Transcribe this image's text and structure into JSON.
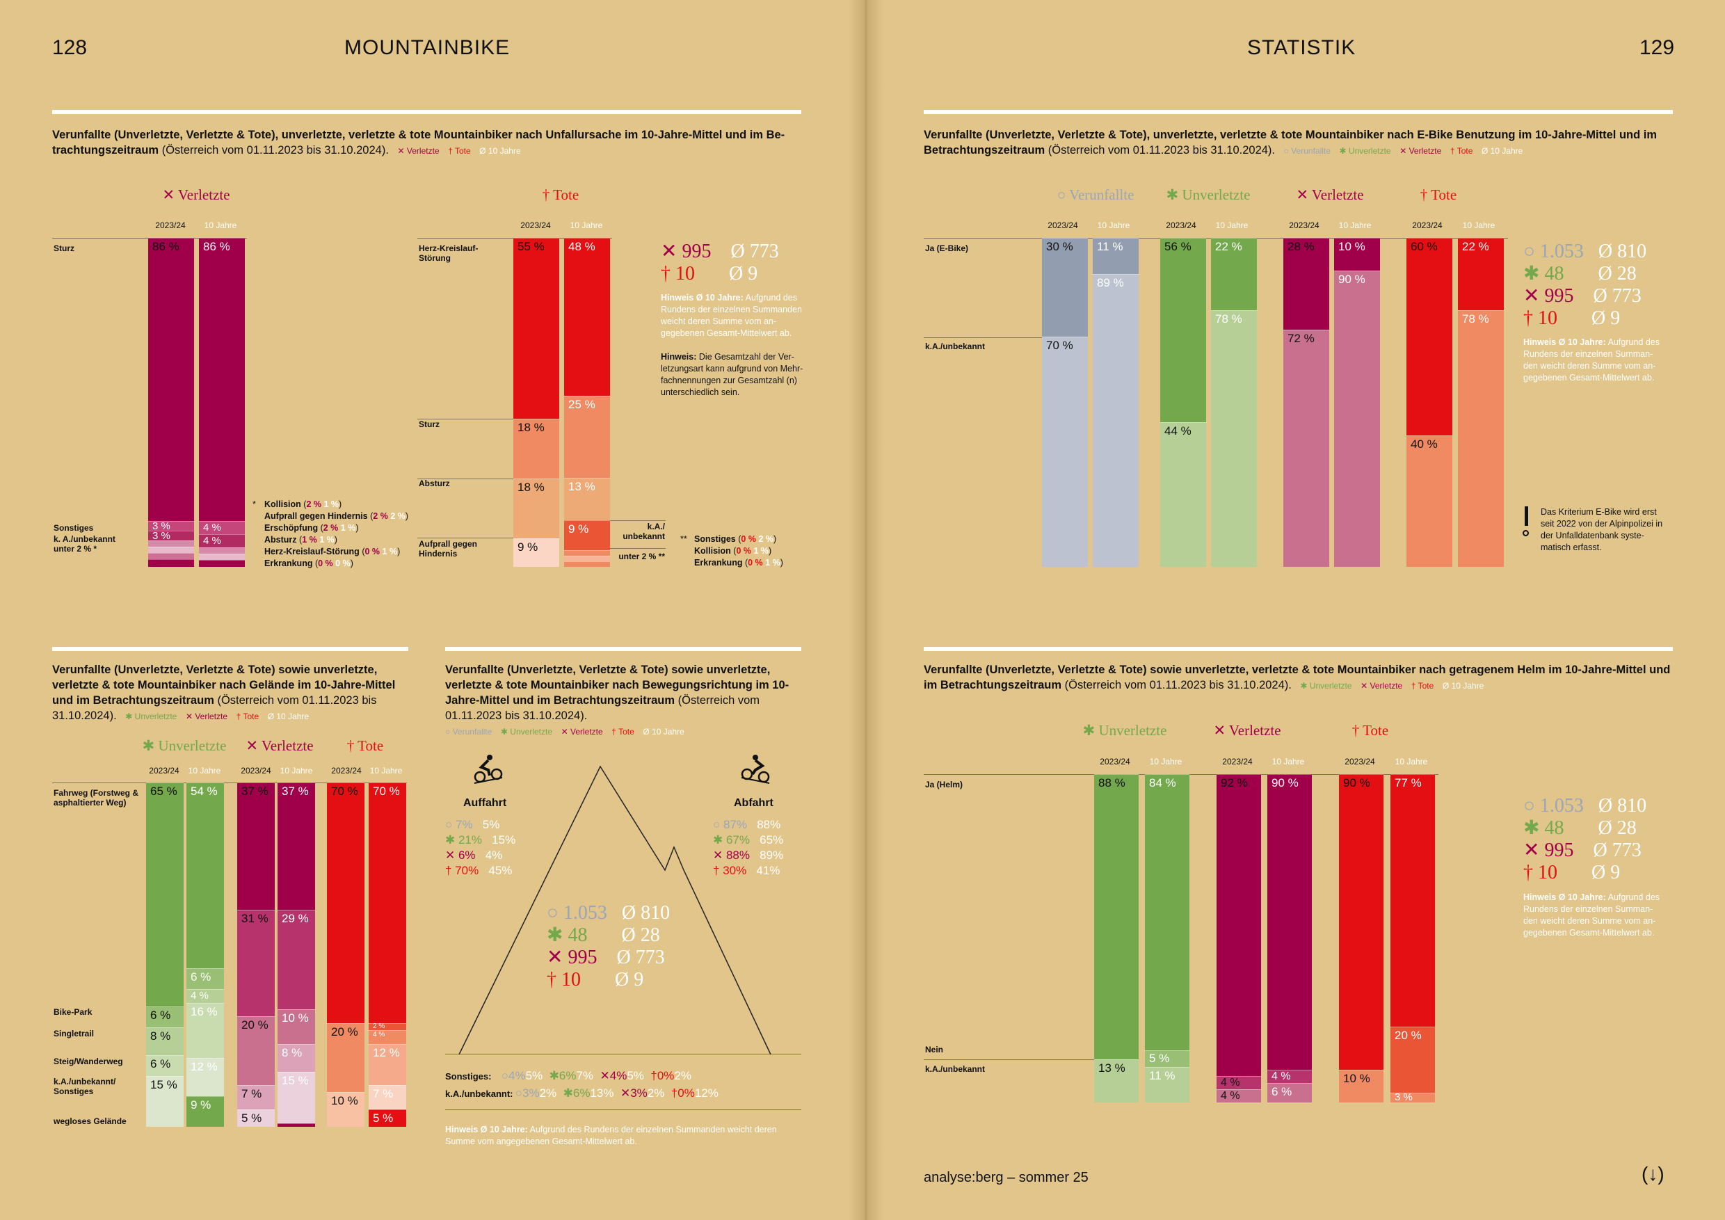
{
  "left_page": {
    "number": "128",
    "title": "MOUNTAINBIKE"
  },
  "right_page": {
    "number": "129",
    "title": "STATISTIK"
  },
  "labels": {
    "y1": "2023/24",
    "y2": "10 Jahre",
    "verunfallte": "Verunfallte",
    "unverletzte": "Unverletzte",
    "verletzte": "Verletzte",
    "tote": "Tote",
    "avg": "Ø 10 Jahre"
  },
  "icons": {
    "verunfallte": "circle-icon",
    "unverletzte": "asterisk-icon",
    "verletzte": "cross-icon",
    "tote": "dagger-icon",
    "avg": "diameter-icon"
  },
  "colors": {
    "verletzte": "#a0004a",
    "tote": "#e30f12",
    "unverletzte": "#74a84d",
    "verunfallte": "#9aa5b8"
  },
  "chart1": {
    "title_bold": "Verunfallte (Unverletzte, Verletzte & Tote), unverletzte, verletzte & tote Mountainbiker nach Unfallursache im 10-Jahre-Mittel und im Be-trachtungszeitraum",
    "title_normal": "(Österreich vom 01.11.2023 bis 31.10.2024).",
    "verletzte_categories": [
      "Sturz",
      "Sonstiges",
      "k. A./unbekannt",
      "unter 2 % *"
    ],
    "tote_categories": [
      "Herz-Kreislauf-Störung",
      "Sturz",
      "Absturz",
      "Aufprall gegen Hindernis"
    ],
    "tote_side_labels": [
      "k.A./ unbekannt",
      "unter 2 % **"
    ],
    "footnote1_marker": "*",
    "footnote1": [
      {
        "label": "Kollision",
        "v": "2 %",
        "a": "1 %"
      },
      {
        "label": "Aufprall gegen Hindernis",
        "v": "2 %",
        "a": "2 %"
      },
      {
        "label": "Erschöpfung",
        "v": "2 %",
        "a": "1 %"
      },
      {
        "label": "Absturz",
        "v": "1 %",
        "a": "1 %"
      },
      {
        "label": "Herz-Kreislauf-Störung",
        "v": "0 %",
        "a": "1 %"
      },
      {
        "label": "Erkrankung",
        "v": "0 %",
        "a": "0 %"
      }
    ],
    "footnote2_marker": "**",
    "footnote2": [
      {
        "label": "Sonstiges",
        "v": "0 %",
        "a": "2 %"
      },
      {
        "label": "Kollision",
        "v": "0 %",
        "a": "1 %"
      },
      {
        "label": "Erkrankung",
        "v": "0 %",
        "a": "1 %"
      }
    ],
    "stats": {
      "verletzte": "995",
      "verletzte_avg": "773",
      "tote": "10",
      "tote_avg": "9"
    },
    "hint1_bold": "Hinweis Ø 10 Jahre:",
    "hint1": "Aufgrund des Rundens der einzelnen Summanden weicht deren Summe vom an-gegebenen Gesamt-Mittelwert ab.",
    "hint2_bold": "Hinweis:",
    "hint2": "Die Gesamtzahl der Ver-letzungsart kann aufgrund von Mehr-fachnennungen zur Gesamtzahl (n) unterschiedlich sein."
  },
  "chart2": {
    "title_bold": "Verunfallte (Unverletzte, Verletzte & Tote), unverletzte, verletzte & tote Mountainbiker nach E-Bike Benutzung im 10-Jahre-Mittel und im Betrachtungszeitraum",
    "title_normal": "(Österreich vom 01.11.2023 bis 31.10.2024).",
    "categories": [
      "Ja (E-Bike)",
      "k.A./unbekannt"
    ],
    "stats": {
      "verunfallte": "1.053",
      "verunfallte_avg": "810",
      "unverletzte": "48",
      "unverletzte_avg": "28",
      "verletzte": "995",
      "verletzte_avg": "773",
      "tote": "10",
      "tote_avg": "9"
    },
    "hint_bold": "Hinweis Ø 10 Jahre:",
    "hint": "Aufgrund des Rundens der einzelnen Summan-den weicht deren Summe vom an-gegebenen Gesamt-Mittelwert ab.",
    "ebike_note": "Das Kriterium E-Bike wird erst seit 2022 von der Alpinpolizei in der Unfalldatenbank syste-matisch erfasst."
  },
  "chart3": {
    "title_bold": "Verunfallte (Unverletzte, Verletzte & Tote) sowie unverletzte, verletzte & tote Mountainbiker nach Gelände im 10-Jahre-Mittel und im Betrachtungszeitraum",
    "title_normal": "(Österreich vom 01.11.2023 bis 31.10.2024).",
    "categories": [
      "Fahrweg (Forstweg & asphaltierter Weg)",
      "Bike-Park",
      "Singletrail",
      "Steig/Wanderweg",
      "k.A./unbekannt/ Sonstiges",
      "wegloses Gelände"
    ]
  },
  "chart4": {
    "title_bold": "Verunfallte (Unverletzte, Verletzte & Tote) sowie unverletzte, verletzte & tote Mountainbiker nach Bewegungsrichtung im 10-Jahre-Mittel und im Betrachtungszeitraum",
    "title_normal": "(Österreich vom 01.11.2023 bis 31.10.2024).",
    "auffahrt": {
      "label": "Auffahrt",
      "rows": [
        [
          "7%",
          "5%"
        ],
        [
          "21%",
          "15%"
        ],
        [
          "6%",
          "4%"
        ],
        [
          "70%",
          "45%"
        ]
      ]
    },
    "abfahrt": {
      "label": "Abfahrt",
      "rows": [
        [
          "87%",
          "88%"
        ],
        [
          "67%",
          "65%"
        ],
        [
          "88%",
          "89%"
        ],
        [
          "30%",
          "41%"
        ]
      ]
    },
    "stats": {
      "verunfallte": "1.053",
      "verunfallte_avg": "810",
      "unverletzte": "48",
      "unverletzte_avg": "28",
      "verletzte": "995",
      "verletzte_avg": "773",
      "tote": "10",
      "tote_avg": "9"
    },
    "sonstiges": {
      "label": "Sonstiges:",
      "vals": [
        [
          "4%",
          "5%"
        ],
        [
          "6%",
          "7%"
        ],
        [
          "4%",
          "5%"
        ],
        [
          "0%",
          "2%"
        ]
      ]
    },
    "unbekannt": {
      "label": "k.A./unbekannt:",
      "vals": [
        [
          "3%",
          "2%"
        ],
        [
          "6%",
          "13%"
        ],
        [
          "3%",
          "2%"
        ],
        [
          "0%",
          "12%"
        ]
      ]
    },
    "hint_bold": "Hinweis Ø 10 Jahre:",
    "hint": "Aufgrund des Rundens der einzelnen Summanden weicht deren Summe vom angegebenen Gesamt-Mittelwert ab."
  },
  "chart5": {
    "title_bold": "Verunfallte (Unverletzte, Verletzte & Tote) sowie unverletzte, verletzte & tote Mountainbiker nach getragenem Helm im 10-Jahre-Mittel und im Betrachtungszeitraum",
    "title_normal": "(Österreich vom 01.11.2023 bis 31.10.2024).",
    "categories": [
      "Ja (Helm)",
      "Nein",
      "k.A./unbekannt"
    ],
    "stats": {
      "verunfallte": "1.053",
      "verunfallte_avg": "810",
      "unverletzte": "48",
      "unverletzte_avg": "28",
      "verletzte": "995",
      "verletzte_avg": "773",
      "tote": "10",
      "tote_avg": "9"
    },
    "hint_bold": "Hinweis Ø 10 Jahre:",
    "hint": "Aufgrund des Rundens der einzelnen Summan-den weicht deren Summe vom an-gegebenen Gesamt-Mittelwert ab."
  },
  "footer": {
    "text": "analyse:berg – sommer 25",
    "arrow": "(↓)"
  },
  "chart_data": [
    {
      "type": "bar",
      "id": "ursache_verletzte",
      "stacked": true,
      "categories": [
        "2023/24",
        "10 Jahre"
      ],
      "series": [
        {
          "name": "Sturz",
          "values": [
            86,
            86
          ]
        },
        {
          "name": "Sonstiges",
          "values": [
            3,
            4
          ]
        },
        {
          "name": "k. A./unbekannt",
          "values": [
            3,
            4
          ]
        },
        {
          "name": "unter 2 % *",
          "values": [
            8,
            6
          ]
        }
      ]
    },
    {
      "type": "bar",
      "id": "ursache_tote",
      "stacked": true,
      "categories": [
        "2023/24",
        "10 Jahre"
      ],
      "series": [
        {
          "name": "Herz-Kreislauf-Störung",
          "values": [
            55,
            48
          ]
        },
        {
          "name": "Sturz",
          "values": [
            18,
            25
          ]
        },
        {
          "name": "Absturz",
          "values": [
            18,
            13
          ]
        },
        {
          "name": "Aufprall gegen Hindernis",
          "values": [
            9,
            0
          ]
        },
        {
          "name": "k.A./ unbekannt",
          "values": [
            0,
            9
          ]
        },
        {
          "name": "unter 2 % **",
          "values": [
            0,
            5
          ]
        }
      ]
    },
    {
      "type": "bar",
      "id": "ebike",
      "stacked": true,
      "groups": [
        "Verunfallte",
        "Unverletzte",
        "Verletzte",
        "Tote"
      ],
      "categories": [
        "2023/24",
        "10 Jahre"
      ],
      "series": [
        {
          "name": "Ja (E-Bike)",
          "values": [
            [
              30,
              11
            ],
            [
              56,
              22
            ],
            [
              28,
              10
            ],
            [
              60,
              22
            ]
          ]
        },
        {
          "name": "k.A./unbekannt",
          "values": [
            [
              70,
              89
            ],
            [
              44,
              78
            ],
            [
              72,
              90
            ],
            [
              40,
              78
            ]
          ]
        }
      ]
    },
    {
      "type": "bar",
      "id": "gelaende",
      "stacked": true,
      "groups": [
        "Unverletzte",
        "Verletzte",
        "Tote"
      ],
      "categories": [
        "2023/24",
        "10 Jahre"
      ],
      "series": [
        {
          "name": "Fahrweg",
          "values": [
            [
              65,
              54
            ],
            [
              37,
              37
            ],
            [
              70,
              70
            ]
          ]
        },
        {
          "name": "Bike-Park",
          "values": [
            [
              6,
              6
            ],
            [
              31,
              29
            ],
            [
              0,
              0
            ]
          ]
        },
        {
          "name": "Singletrail",
          "values": [
            [
              8,
              4
            ],
            [
              20,
              10
            ],
            [
              20,
              2
            ]
          ]
        },
        {
          "name": "Steig/Wanderweg",
          "values": [
            [
              6,
              16
            ],
            [
              0,
              8
            ],
            [
              0,
              4
            ]
          ]
        },
        {
          "name": "k.A./unbekannt/ Sonstiges",
          "values": [
            [
              15,
              12
            ],
            [
              7,
              15
            ],
            [
              10,
              12
            ]
          ]
        },
        {
          "name": "wegloses Gelände",
          "values": [
            [
              0,
              9
            ],
            [
              5,
              0
            ],
            [
              0,
              7
            ]
          ]
        }
      ],
      "extra_labels": {
        "tote_10jahre_rest": "5 %"
      }
    },
    {
      "type": "bar",
      "id": "helm",
      "stacked": true,
      "groups": [
        "Unverletzte",
        "Verletzte",
        "Tote"
      ],
      "categories": [
        "2023/24",
        "10 Jahre"
      ],
      "series": [
        {
          "name": "Ja (Helm)",
          "values": [
            [
              88,
              84
            ],
            [
              92,
              90
            ],
            [
              90,
              77
            ]
          ]
        },
        {
          "name": "Nein",
          "values": [
            [
              0,
              5
            ],
            [
              4,
              4
            ],
            [
              0,
              20
            ]
          ]
        },
        {
          "name": "k.A./unbekannt",
          "values": [
            [
              13,
              11
            ],
            [
              4,
              6
            ],
            [
              10,
              3
            ]
          ]
        }
      ]
    }
  ]
}
